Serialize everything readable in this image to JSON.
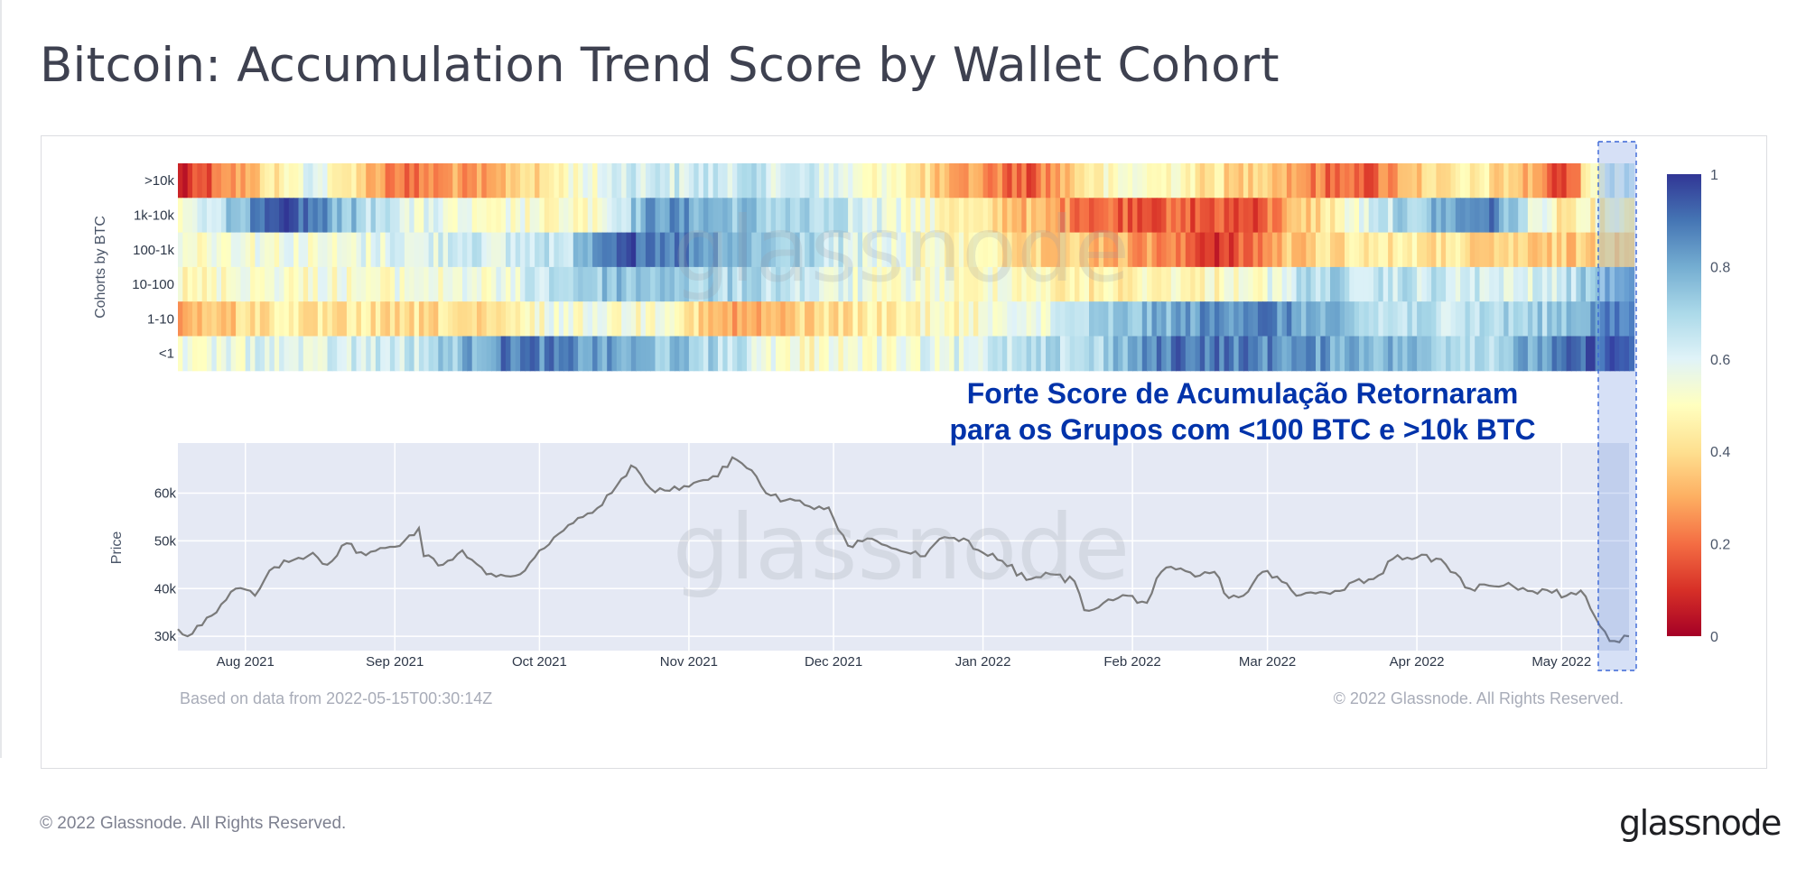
{
  "page": {
    "title": "Bitcoin: Accumulation Trend Score by Wallet Cohort",
    "footer": "© 2022 Glassnode. All Rights Reserved.",
    "brand": "glassnode"
  },
  "chart_data": [
    {
      "type": "heatmap",
      "ylabel": "Cohorts by BTC",
      "rows": [
        ">10k",
        "1k-10k",
        "100-1k",
        "10-100",
        "1-10",
        "<1"
      ],
      "x_start": "2021-07-18",
      "x_end": "2022-05-15",
      "colorscale": [
        [
          0,
          "#a50026"
        ],
        [
          0.1,
          "#d73027"
        ],
        [
          0.2,
          "#f46d43"
        ],
        [
          0.3,
          "#fdae61"
        ],
        [
          0.4,
          "#fee090"
        ],
        [
          0.5,
          "#ffffbf"
        ],
        [
          0.6,
          "#e0f3f8"
        ],
        [
          0.7,
          "#abd9e9"
        ],
        [
          0.8,
          "#74add1"
        ],
        [
          0.9,
          "#4575b4"
        ],
        [
          1,
          "#313695"
        ]
      ],
      "colorbar_ticks": [
        0,
        0.2,
        0.4,
        0.6,
        0.8,
        1
      ],
      "row_segments": [
        [
          [
            "2021-07-18",
            0.05
          ],
          [
            "2021-07-31",
            0.3
          ],
          [
            "2021-08-15",
            0.6
          ],
          [
            "2021-08-31",
            0.2
          ],
          [
            "2021-09-25",
            0.35
          ],
          [
            "2021-10-15",
            0.6
          ],
          [
            "2021-11-10",
            0.65
          ],
          [
            "2021-12-01",
            0.6
          ],
          [
            "2021-12-20",
            0.4
          ],
          [
            "2022-01-10",
            0.15
          ],
          [
            "2022-01-28",
            0.55
          ],
          [
            "2022-02-20",
            0.4
          ],
          [
            "2022-03-20",
            0.15
          ],
          [
            "2022-04-10",
            0.5
          ],
          [
            "2022-04-25",
            0.3
          ],
          [
            "2022-05-01",
            0.1
          ],
          [
            "2022-05-09",
            0.6
          ]
        ],
        [
          [
            "2021-07-18",
            0.5
          ],
          [
            "2021-07-31",
            0.8
          ],
          [
            "2021-08-10",
            0.95
          ],
          [
            "2021-08-31",
            0.6
          ],
          [
            "2021-10-10",
            0.5
          ],
          [
            "2021-10-25",
            0.85
          ],
          [
            "2021-11-20",
            0.7
          ],
          [
            "2021-12-10",
            0.6
          ],
          [
            "2022-01-01",
            0.4
          ],
          [
            "2022-01-25",
            0.2
          ],
          [
            "2022-02-25",
            0.15
          ],
          [
            "2022-03-25",
            0.65
          ],
          [
            "2022-04-15",
            0.9
          ],
          [
            "2022-05-01",
            0.4
          ],
          [
            "2022-05-09",
            0.5
          ]
        ],
        [
          [
            "2021-07-18",
            0.5
          ],
          [
            "2021-10-05",
            0.65
          ],
          [
            "2021-10-20",
            0.95
          ],
          [
            "2021-12-15",
            0.55
          ],
          [
            "2022-02-01",
            0.3
          ],
          [
            "2022-02-20",
            0.1
          ],
          [
            "2022-03-05",
            0.35
          ],
          [
            "2022-03-25",
            0.45
          ],
          [
            "2022-05-09",
            0.35
          ]
        ],
        [
          [
            "2021-07-18",
            0.5
          ],
          [
            "2021-09-20",
            0.55
          ],
          [
            "2021-10-15",
            0.75
          ],
          [
            "2021-11-10",
            0.7
          ],
          [
            "2021-12-10",
            0.55
          ],
          [
            "2022-01-25",
            0.45
          ],
          [
            "2022-02-25",
            0.5
          ],
          [
            "2022-03-10",
            0.7
          ],
          [
            "2022-04-25",
            0.6
          ],
          [
            "2022-05-09",
            0.75
          ]
        ],
        [
          [
            "2021-07-18",
            0.3
          ],
          [
            "2021-08-10",
            0.45
          ],
          [
            "2021-09-15",
            0.4
          ],
          [
            "2021-10-05",
            0.55
          ],
          [
            "2021-10-25",
            0.5
          ],
          [
            "2021-11-10",
            0.3
          ],
          [
            "2021-12-10",
            0.45
          ],
          [
            "2022-01-10",
            0.55
          ],
          [
            "2022-01-25",
            0.7
          ],
          [
            "2022-02-25",
            0.9
          ],
          [
            "2022-03-25",
            0.65
          ],
          [
            "2022-04-25",
            0.7
          ],
          [
            "2022-05-09",
            0.85
          ]
        ],
        [
          [
            "2021-07-18",
            0.55
          ],
          [
            "2021-09-05",
            0.65
          ],
          [
            "2021-09-25",
            0.9
          ],
          [
            "2021-11-05",
            0.7
          ],
          [
            "2021-11-25",
            0.5
          ],
          [
            "2022-01-25",
            0.7
          ],
          [
            "2022-02-10",
            0.92
          ],
          [
            "2022-03-20",
            0.8
          ],
          [
            "2022-04-15",
            0.7
          ],
          [
            "2022-05-09",
            0.95
          ]
        ]
      ]
    },
    {
      "type": "line",
      "ylabel": "Price",
      "yticks": [
        "30k",
        "40k",
        "50k",
        "60k"
      ],
      "ytick_values": [
        30000,
        40000,
        50000,
        60000
      ],
      "ylim": [
        27000,
        70500
      ],
      "x_tick_labels": [
        "Aug 2021",
        "Sep 2021",
        "Oct 2021",
        "Nov 2021",
        "Dec 2021",
        "Jan 2022",
        "Feb 2022",
        "Mar 2022",
        "Apr 2022",
        "May 2022"
      ],
      "x_tick_dates": [
        "2021-08-01",
        "2021-09-01",
        "2021-10-01",
        "2021-11-01",
        "2021-12-01",
        "2022-01-01",
        "2022-02-01",
        "2022-03-01",
        "2022-04-01",
        "2022-05-01"
      ],
      "x_range": [
        "2021-07-18",
        "2022-05-15"
      ],
      "series": [
        {
          "color": "#7a7a7a",
          "points": [
            [
              "2021-07-18",
              31500
            ],
            [
              "2021-07-20",
              30000
            ],
            [
              "2021-07-22",
              32200
            ],
            [
              "2021-07-26",
              35000
            ],
            [
              "2021-07-30",
              40000
            ],
            [
              "2021-08-01",
              39800
            ],
            [
              "2021-08-03",
              38500
            ],
            [
              "2021-08-07",
              44500
            ],
            [
              "2021-08-11",
              46000
            ],
            [
              "2021-08-15",
              47500
            ],
            [
              "2021-08-18",
              45000
            ],
            [
              "2021-08-22",
              49500
            ],
            [
              "2021-08-26",
              47000
            ],
            [
              "2021-08-30",
              48500
            ],
            [
              "2021-09-03",
              50000
            ],
            [
              "2021-09-06",
              52700
            ],
            [
              "2021-09-07",
              46800
            ],
            [
              "2021-09-11",
              45000
            ],
            [
              "2021-09-15",
              48000
            ],
            [
              "2021-09-20",
              43000
            ],
            [
              "2021-09-22",
              42500
            ],
            [
              "2021-09-27",
              43000
            ],
            [
              "2021-10-01",
              48000
            ],
            [
              "2021-10-05",
              51500
            ],
            [
              "2021-10-10",
              55000
            ],
            [
              "2021-10-14",
              57500
            ],
            [
              "2021-10-17",
              61500
            ],
            [
              "2021-10-20",
              65800
            ],
            [
              "2021-10-24",
              61000
            ],
            [
              "2021-10-28",
              60500
            ],
            [
              "2021-10-31",
              61500
            ],
            [
              "2021-11-03",
              62500
            ],
            [
              "2021-11-07",
              63500
            ],
            [
              "2021-11-10",
              67500
            ],
            [
              "2021-11-14",
              64800
            ],
            [
              "2021-11-17",
              60000
            ],
            [
              "2021-11-21",
              58500
            ],
            [
              "2021-11-25",
              57500
            ],
            [
              "2021-11-30",
              57000
            ],
            [
              "2021-12-04",
              49000
            ],
            [
              "2021-12-08",
              50500
            ],
            [
              "2021-12-12",
              49000
            ],
            [
              "2021-12-16",
              47600
            ],
            [
              "2021-12-20",
              46800
            ],
            [
              "2021-12-24",
              50800
            ],
            [
              "2021-12-28",
              50500
            ],
            [
              "2022-01-01",
              47500
            ],
            [
              "2022-01-05",
              45800
            ],
            [
              "2022-01-10",
              41800
            ],
            [
              "2022-01-15",
              43000
            ],
            [
              "2022-01-20",
              41500
            ],
            [
              "2022-01-22",
              35500
            ],
            [
              "2022-01-26",
              37000
            ],
            [
              "2022-01-31",
              38500
            ],
            [
              "2022-02-04",
              37000
            ],
            [
              "2022-02-07",
              43500
            ],
            [
              "2022-02-10",
              44000
            ],
            [
              "2022-02-14",
              42500
            ],
            [
              "2022-02-18",
              43500
            ],
            [
              "2022-02-21",
              38000
            ],
            [
              "2022-02-24",
              38500
            ],
            [
              "2022-02-28",
              43500
            ],
            [
              "2022-03-03",
              42500
            ],
            [
              "2022-03-07",
              38500
            ],
            [
              "2022-03-11",
              39000
            ],
            [
              "2022-03-15",
              39500
            ],
            [
              "2022-03-19",
              41500
            ],
            [
              "2022-03-23",
              42000
            ],
            [
              "2022-03-28",
              47000
            ],
            [
              "2022-04-01",
              46500
            ],
            [
              "2022-04-05",
              46300
            ],
            [
              "2022-04-08",
              43500
            ],
            [
              "2022-04-12",
              40000
            ],
            [
              "2022-04-16",
              40600
            ],
            [
              "2022-04-20",
              41200
            ],
            [
              "2022-04-24",
              39500
            ],
            [
              "2022-04-28",
              39700
            ],
            [
              "2022-05-02",
              38500
            ],
            [
              "2022-05-05",
              39600
            ],
            [
              "2022-05-08",
              34000
            ],
            [
              "2022-05-10",
              31000
            ],
            [
              "2022-05-11",
              29000
            ],
            [
              "2022-05-12",
              29000
            ],
            [
              "2022-05-15",
              30000
            ]
          ]
        }
      ]
    }
  ],
  "annotations": {
    "callout_line1": "Forte Score de Acumulação Retornaram",
    "callout_line2": "para os Grupos com <100 BTC e >10k BTC",
    "callout_color": "#0033aa",
    "highlight_start": "2022-05-09",
    "highlight_end": "2022-05-15"
  },
  "watermark": "glassnode",
  "source_note": "Based on data from 2022-05-15T00:30:14Z",
  "copyright": "© 2022 Glassnode. All Rights Reserved."
}
